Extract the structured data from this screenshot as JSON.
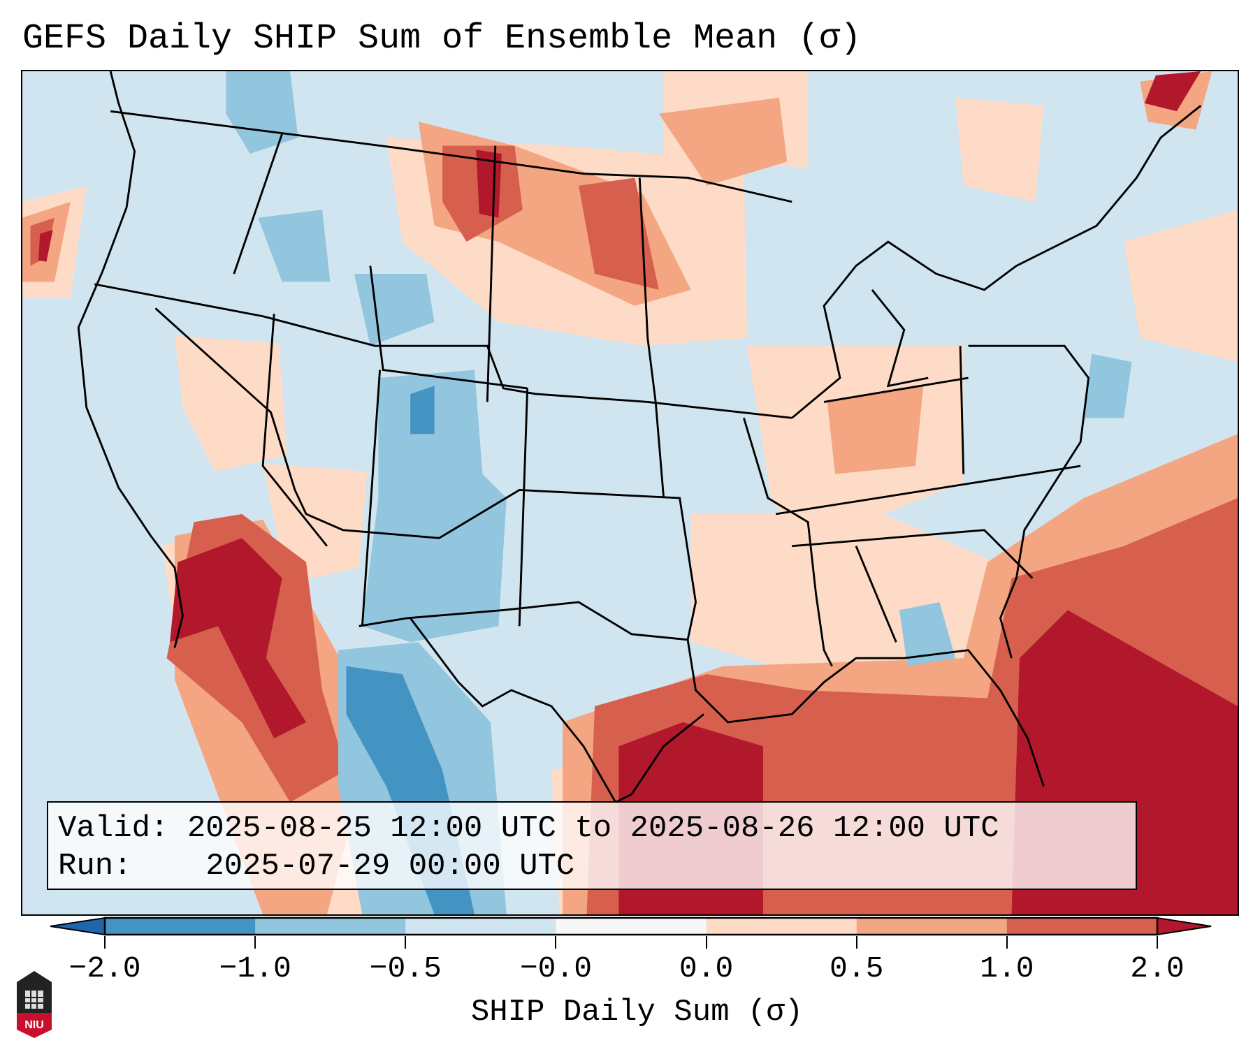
{
  "title": "GEFS Daily SHIP Sum of Ensemble Mean (σ)",
  "legend": {
    "valid_label": "Valid:",
    "valid_value": "2025-08-25 12:00 UTC to 2025-08-26 12:00 UTC",
    "run_label": "Run:",
    "run_value": "2025-07-29 00:00 UTC"
  },
  "colorbar": {
    "label": "SHIP Daily Sum (σ)",
    "ticks": [
      "−2.0",
      "−1.0",
      "−0.5",
      "−0.0",
      "0.0",
      "0.5",
      "1.0",
      "2.0"
    ],
    "colors": [
      "#4393c3",
      "#92c5de",
      "#d1e5f0",
      "#f7f7f7",
      "#fddbc7",
      "#f4a582",
      "#d6604d"
    ],
    "under_color": "#2166ac",
    "over_color": "#b2182b"
  },
  "logo": {
    "text": "NIU"
  }
}
